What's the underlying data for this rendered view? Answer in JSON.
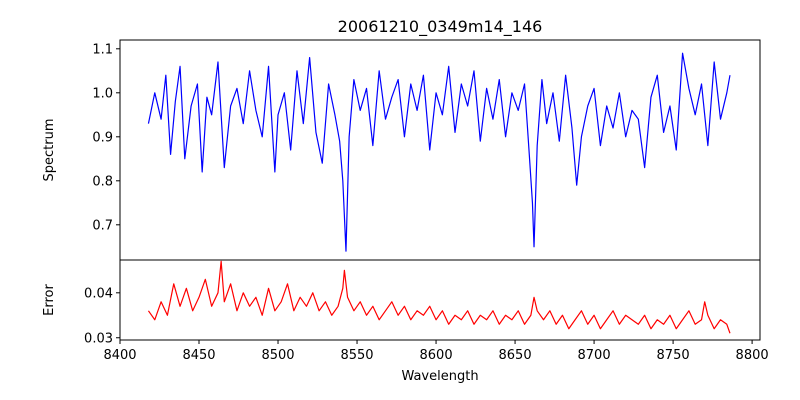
{
  "chart_data": {
    "type": "line",
    "title": "20061210_0349m14_146",
    "xlabel": "Wavelength",
    "xlim": [
      8400,
      8805
    ],
    "xticks": [
      8400,
      8450,
      8500,
      8550,
      8600,
      8650,
      8700,
      8750,
      8800
    ],
    "panels": [
      {
        "id": "spectrum",
        "ylabel": "Spectrum",
        "ylim": [
          0.62,
          1.12
        ],
        "yticks": [
          0.7,
          0.8,
          0.9,
          1.0,
          1.1
        ],
        "ytick_labels": [
          "0.7",
          "0.8",
          "0.9",
          "1.0",
          "1.1"
        ],
        "series": [
          {
            "name": "Spectrum",
            "color": "#0000ff",
            "x": [
              8418,
              8422,
              8426,
              8429,
              8432,
              8435,
              8438,
              8441,
              8445,
              8449,
              8452,
              8455,
              8458,
              8462,
              8466,
              8470,
              8474,
              8478,
              8482,
              8486,
              8490,
              8494,
              8498,
              8500,
              8504,
              8508,
              8512,
              8516,
              8520,
              8524,
              8528,
              8532,
              8536,
              8539,
              8541,
              8543,
              8545,
              8548,
              8552,
              8556,
              8560,
              8564,
              8568,
              8572,
              8576,
              8580,
              8584,
              8588,
              8592,
              8596,
              8600,
              8604,
              8608,
              8612,
              8616,
              8620,
              8624,
              8628,
              8632,
              8636,
              8640,
              8644,
              8648,
              8652,
              8656,
              8659,
              8661,
              8662,
              8664,
              8667,
              8670,
              8674,
              8678,
              8682,
              8686,
              8689,
              8692,
              8696,
              8700,
              8704,
              8708,
              8712,
              8716,
              8720,
              8724,
              8728,
              8732,
              8736,
              8740,
              8744,
              8748,
              8752,
              8756,
              8760,
              8764,
              8768,
              8772,
              8776,
              8780,
              8784,
              8786
            ],
            "y": [
              0.93,
              1.0,
              0.94,
              1.04,
              0.86,
              0.98,
              1.06,
              0.85,
              0.97,
              1.02,
              0.82,
              0.99,
              0.95,
              1.07,
              0.83,
              0.97,
              1.01,
              0.93,
              1.05,
              0.96,
              0.9,
              1.06,
              0.82,
              0.95,
              1.0,
              0.87,
              1.05,
              0.93,
              1.08,
              0.91,
              0.84,
              1.02,
              0.95,
              0.89,
              0.8,
              0.64,
              0.9,
              1.03,
              0.96,
              1.01,
              0.88,
              1.05,
              0.94,
              0.99,
              1.03,
              0.9,
              1.02,
              0.96,
              1.04,
              0.87,
              1.0,
              0.95,
              1.06,
              0.91,
              1.02,
              0.97,
              1.05,
              0.89,
              1.01,
              0.94,
              1.03,
              0.9,
              1.0,
              0.96,
              1.02,
              0.86,
              0.75,
              0.65,
              0.88,
              1.03,
              0.93,
              1.0,
              0.89,
              1.04,
              0.92,
              0.79,
              0.9,
              0.97,
              1.01,
              0.88,
              0.97,
              0.92,
              1.0,
              0.9,
              0.96,
              0.94,
              0.83,
              0.99,
              1.04,
              0.91,
              0.97,
              0.87,
              1.09,
              1.01,
              0.95,
              1.02,
              0.88,
              1.07,
              0.94,
              1.0,
              1.04
            ]
          }
        ]
      },
      {
        "id": "error",
        "ylabel": "Error",
        "ylim": [
          0.0295,
          0.0473
        ],
        "yticks": [
          0.03,
          0.04
        ],
        "ytick_labels": [
          "0.03",
          "0.04"
        ],
        "series": [
          {
            "name": "Error",
            "color": "#ff0000",
            "x": [
              8418,
              8422,
              8426,
              8430,
              8434,
              8438,
              8442,
              8446,
              8450,
              8454,
              8458,
              8462,
              8464,
              8466,
              8470,
              8474,
              8478,
              8482,
              8486,
              8490,
              8494,
              8498,
              8502,
              8506,
              8510,
              8514,
              8518,
              8522,
              8526,
              8530,
              8534,
              8538,
              8541,
              8542,
              8544,
              8548,
              8552,
              8556,
              8560,
              8564,
              8568,
              8572,
              8576,
              8580,
              8584,
              8588,
              8592,
              8596,
              8600,
              8604,
              8608,
              8612,
              8616,
              8620,
              8624,
              8628,
              8632,
              8636,
              8640,
              8644,
              8648,
              8652,
              8656,
              8660,
              8662,
              8664,
              8668,
              8672,
              8676,
              8680,
              8684,
              8688,
              8692,
              8696,
              8700,
              8704,
              8708,
              8712,
              8716,
              8720,
              8724,
              8728,
              8732,
              8736,
              8740,
              8744,
              8748,
              8752,
              8756,
              8760,
              8764,
              8768,
              8770,
              8772,
              8776,
              8780,
              8784,
              8786
            ],
            "y": [
              0.036,
              0.034,
              0.038,
              0.035,
              0.042,
              0.037,
              0.041,
              0.036,
              0.039,
              0.043,
              0.037,
              0.04,
              0.047,
              0.038,
              0.042,
              0.036,
              0.04,
              0.037,
              0.039,
              0.035,
              0.041,
              0.036,
              0.038,
              0.042,
              0.036,
              0.039,
              0.037,
              0.04,
              0.036,
              0.038,
              0.035,
              0.037,
              0.041,
              0.045,
              0.039,
              0.036,
              0.038,
              0.035,
              0.037,
              0.034,
              0.036,
              0.038,
              0.035,
              0.037,
              0.034,
              0.036,
              0.035,
              0.037,
              0.034,
              0.036,
              0.033,
              0.035,
              0.034,
              0.036,
              0.033,
              0.035,
              0.034,
              0.036,
              0.033,
              0.035,
              0.034,
              0.036,
              0.033,
              0.035,
              0.039,
              0.036,
              0.034,
              0.036,
              0.033,
              0.035,
              0.032,
              0.034,
              0.036,
              0.033,
              0.035,
              0.032,
              0.034,
              0.036,
              0.033,
              0.035,
              0.034,
              0.033,
              0.035,
              0.032,
              0.034,
              0.033,
              0.035,
              0.032,
              0.034,
              0.036,
              0.033,
              0.034,
              0.038,
              0.035,
              0.032,
              0.034,
              0.033,
              0.031
            ]
          }
        ]
      }
    ]
  }
}
